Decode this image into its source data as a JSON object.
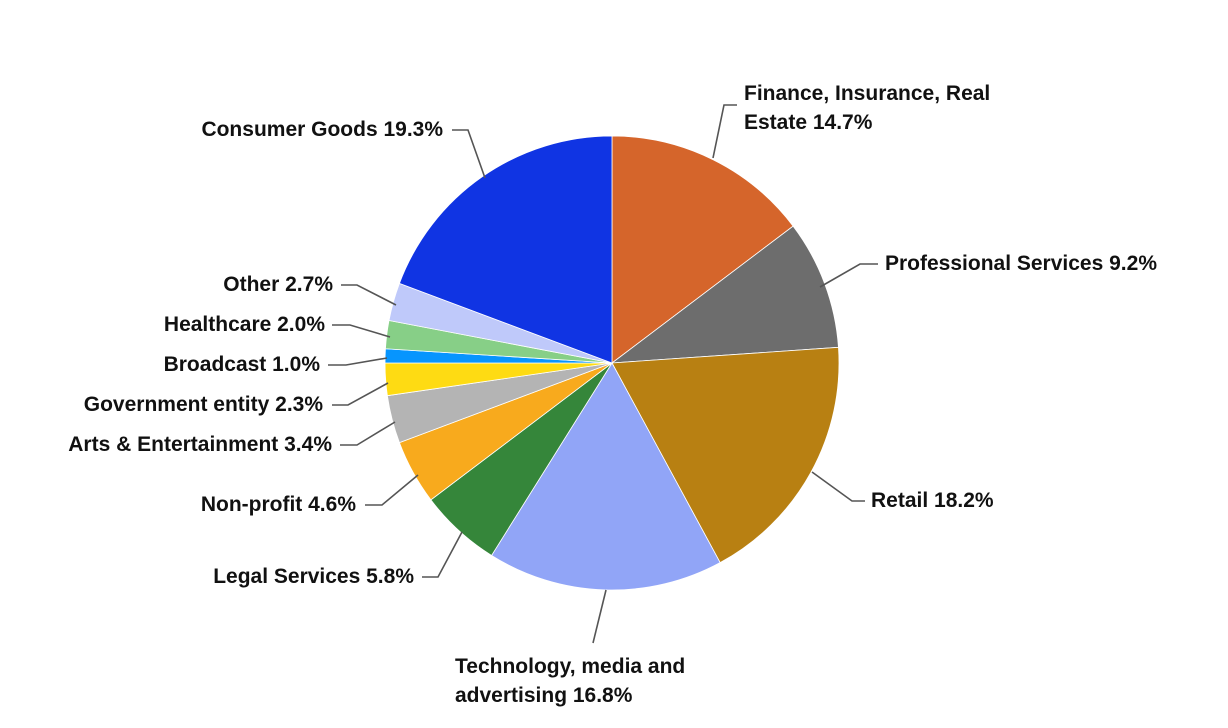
{
  "chart_data": {
    "type": "pie",
    "title": "",
    "start_angle": "12 o'clock",
    "direction": "clockwise",
    "legend": "none (direct labels with leader lines)",
    "slices": [
      {
        "label": "Finance, Insurance, Real Estate",
        "value": 14.7,
        "display": "Finance, Insurance, Real Estate 14.7%",
        "color": "#D5652B"
      },
      {
        "label": "Professional Services",
        "value": 9.2,
        "display": "Professional Services 9.2%",
        "color": "#6D6D6D"
      },
      {
        "label": "Retail",
        "value": 18.2,
        "display": "Retail 18.2%",
        "color": "#B88012"
      },
      {
        "label": "Technology, media and advertising",
        "value": 16.8,
        "display": "Technology, media and advertising 16.8%",
        "color": "#91A5F7"
      },
      {
        "label": "Legal Services",
        "value": 5.8,
        "display": "Legal Services 5.8%",
        "color": "#35863A"
      },
      {
        "label": "Non-profit",
        "value": 4.6,
        "display": "Non-profit 4.6%",
        "color": "#F8AA1D"
      },
      {
        "label": "Arts & Entertainment",
        "value": 3.4,
        "display": "Arts & Entertainment 3.4%",
        "color": "#B4B4B4"
      },
      {
        "label": "Government entity",
        "value": 2.3,
        "display": "Government entity 2.3%",
        "color": "#FEDB13"
      },
      {
        "label": "Broadcast",
        "value": 1.0,
        "display": "Broadcast 1.0%",
        "color": "#0795FE"
      },
      {
        "label": "Healthcare",
        "value": 2.0,
        "display": "Healthcare 2.0%",
        "color": "#87CF87"
      },
      {
        "label": "Other",
        "value": 2.7,
        "display": "Other 2.7%",
        "color": "#BFC9FA"
      },
      {
        "label": "Consumer Goods",
        "value": 19.3,
        "display": "Consumer Goods 19.3%",
        "color": "#1034E3"
      }
    ]
  },
  "labels": {
    "finance_line1": "Finance, Insurance, Real",
    "finance_line2": "Estate 14.7%",
    "professional": "Professional Services 9.2%",
    "retail": "Retail 18.2%",
    "tech_line1": "Technology, media and",
    "tech_line2": "advertising 16.8%",
    "legal": "Legal Services 5.8%",
    "nonprofit": "Non-profit 4.6%",
    "arts": "Arts & Entertainment 3.4%",
    "government": "Government entity 2.3%",
    "broadcast": "Broadcast 1.0%",
    "healthcare": "Healthcare 2.0%",
    "other": "Other 2.7%",
    "consumer": "Consumer Goods 19.3%"
  }
}
